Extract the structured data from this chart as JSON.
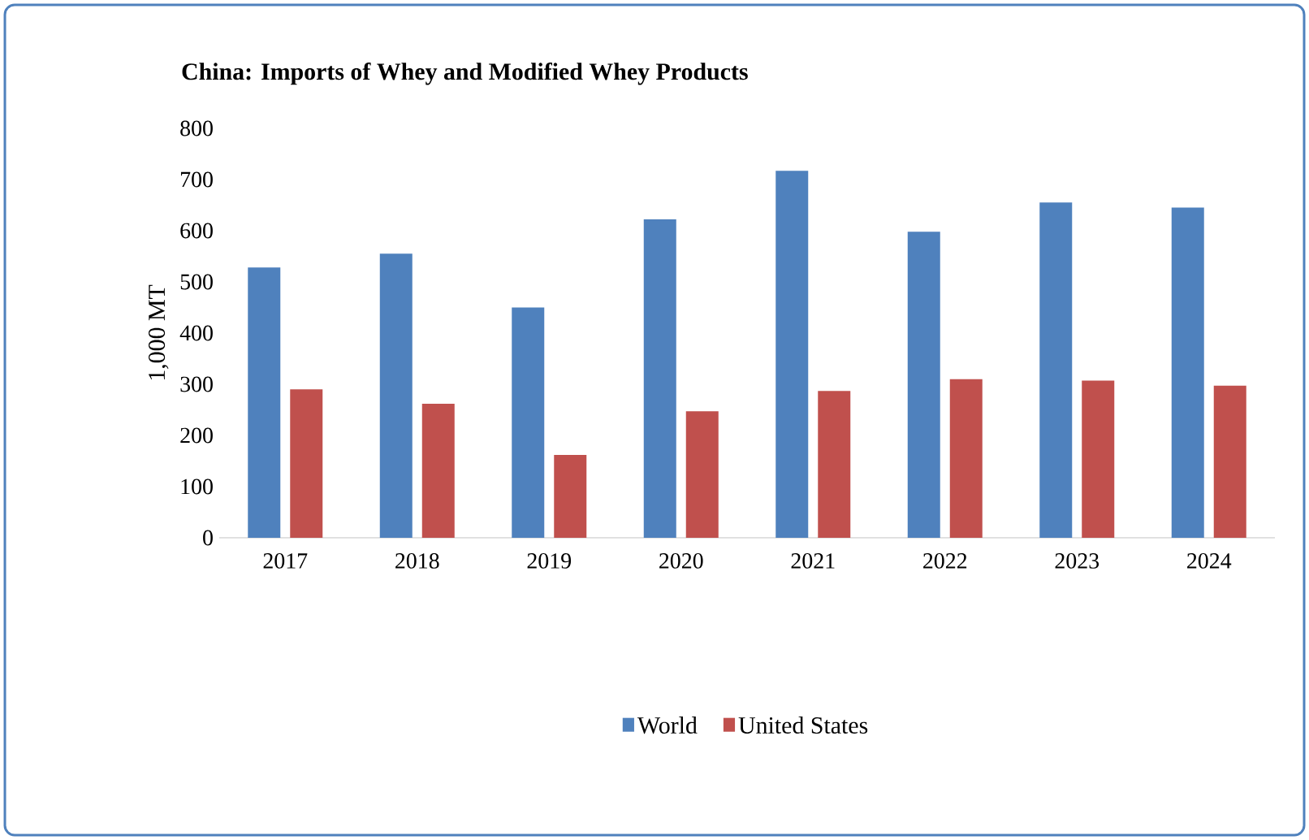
{
  "chart_data": {
    "type": "bar",
    "title": "China:  Imports of Whey and Modified Whey Products",
    "ylabel": "1,000 MT",
    "categories": [
      "2017",
      "2018",
      "2019",
      "2020",
      "2021",
      "2022",
      "2023",
      "2024"
    ],
    "series": [
      {
        "name": "World",
        "color": "#4f81bd",
        "values": [
          528,
          555,
          450,
          622,
          717,
          598,
          655,
          645
        ]
      },
      {
        "name": "United States",
        "color": "#c0504d",
        "values": [
          290,
          262,
          162,
          247,
          287,
          310,
          307,
          297
        ]
      }
    ],
    "ylim": [
      0,
      800
    ],
    "yticks": [
      0,
      100,
      200,
      300,
      400,
      500,
      600,
      700,
      800
    ],
    "legend": "bottom"
  }
}
